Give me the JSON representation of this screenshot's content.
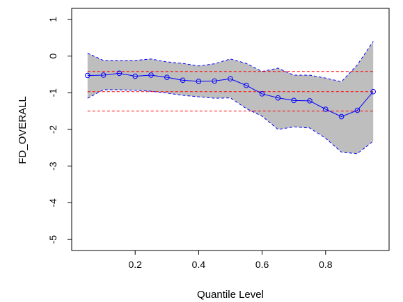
{
  "chart_data": {
    "type": "line",
    "title": "",
    "xlabel": "Quantile Level",
    "ylabel": "FD_OVERALL",
    "xlim": [
      0.0,
      1.0
    ],
    "ylim": [
      -5.3,
      1.3
    ],
    "x_ticks": [
      0.2,
      0.4,
      0.6,
      0.8
    ],
    "x_tick_labels": [
      "0.2",
      "0.4",
      "0.6",
      "0.8"
    ],
    "y_ticks": [
      1,
      0,
      -1,
      -2,
      -3,
      -4,
      -5
    ],
    "y_tick_labels": [
      "1",
      "0",
      "-1",
      "-2",
      "-3",
      "-4",
      "-5"
    ],
    "grid": false,
    "legend": "none",
    "x": [
      0.05,
      0.1,
      0.15,
      0.2,
      0.25,
      0.3,
      0.35,
      0.4,
      0.45,
      0.5,
      0.55,
      0.6,
      0.65,
      0.7,
      0.75,
      0.8,
      0.85,
      0.9,
      0.95
    ],
    "series": [
      {
        "role": "quantile_estimate",
        "values": [
          -0.53,
          -0.52,
          -0.47,
          -0.55,
          -0.52,
          -0.58,
          -0.66,
          -0.69,
          -0.68,
          -0.62,
          -0.8,
          -1.03,
          -1.14,
          -1.21,
          -1.22,
          -1.45,
          -1.65,
          -1.48,
          -0.97
        ],
        "color": "#0000ff",
        "marker": "circle"
      }
    ],
    "confidence_band": {
      "color": "#bebebe",
      "edge_color": "#0000ff",
      "x": [
        0.05,
        0.1,
        0.15,
        0.2,
        0.25,
        0.3,
        0.35,
        0.4,
        0.45,
        0.5,
        0.55,
        0.6,
        0.65,
        0.7,
        0.75,
        0.8,
        0.85,
        0.9,
        0.95
      ],
      "upper": [
        0.08,
        -0.12,
        -0.12,
        -0.12,
        -0.08,
        -0.16,
        -0.2,
        -0.27,
        -0.21,
        -0.08,
        -0.2,
        -0.42,
        -0.33,
        -0.52,
        -0.52,
        -0.6,
        -0.7,
        -0.24,
        0.4
      ],
      "lower": [
        -1.15,
        -0.92,
        -0.92,
        -0.93,
        -0.96,
        -1.01,
        -1.07,
        -1.11,
        -1.15,
        -1.14,
        -1.43,
        -1.64,
        -2.0,
        -1.93,
        -1.96,
        -2.24,
        -2.62,
        -2.66,
        -2.32
      ]
    },
    "reference_lines": {
      "color": "#ff0000",
      "style": "dashed",
      "y": [
        -0.42,
        -0.97,
        -1.5
      ]
    }
  }
}
